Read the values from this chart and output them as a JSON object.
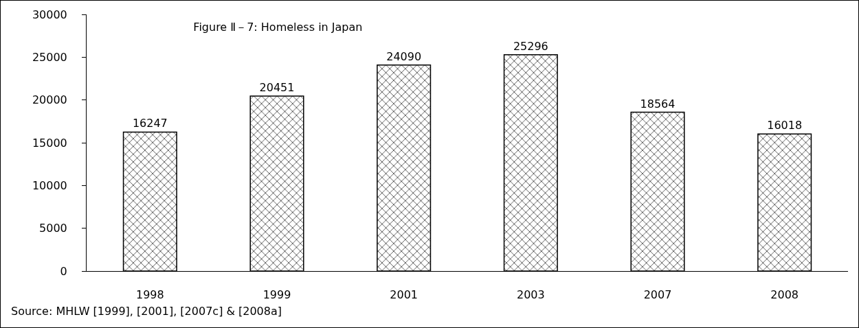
{
  "chart_data": {
    "type": "bar",
    "title": "Figure Ⅱ－7: Homeless in Japan",
    "categories": [
      "1998",
      "1999",
      "2001",
      "2003",
      "2007",
      "2008"
    ],
    "values": [
      16247,
      20451,
      24090,
      25296,
      18564,
      16018
    ],
    "color": "#000000",
    "ylim": [
      0,
      30000
    ],
    "yticks": [
      0,
      5000,
      10000,
      15000,
      20000,
      25000,
      30000
    ],
    "data_labels": true,
    "annotations": [
      "Source: MHLW [1999], [2001], [2007c] & [2008a]"
    ]
  }
}
